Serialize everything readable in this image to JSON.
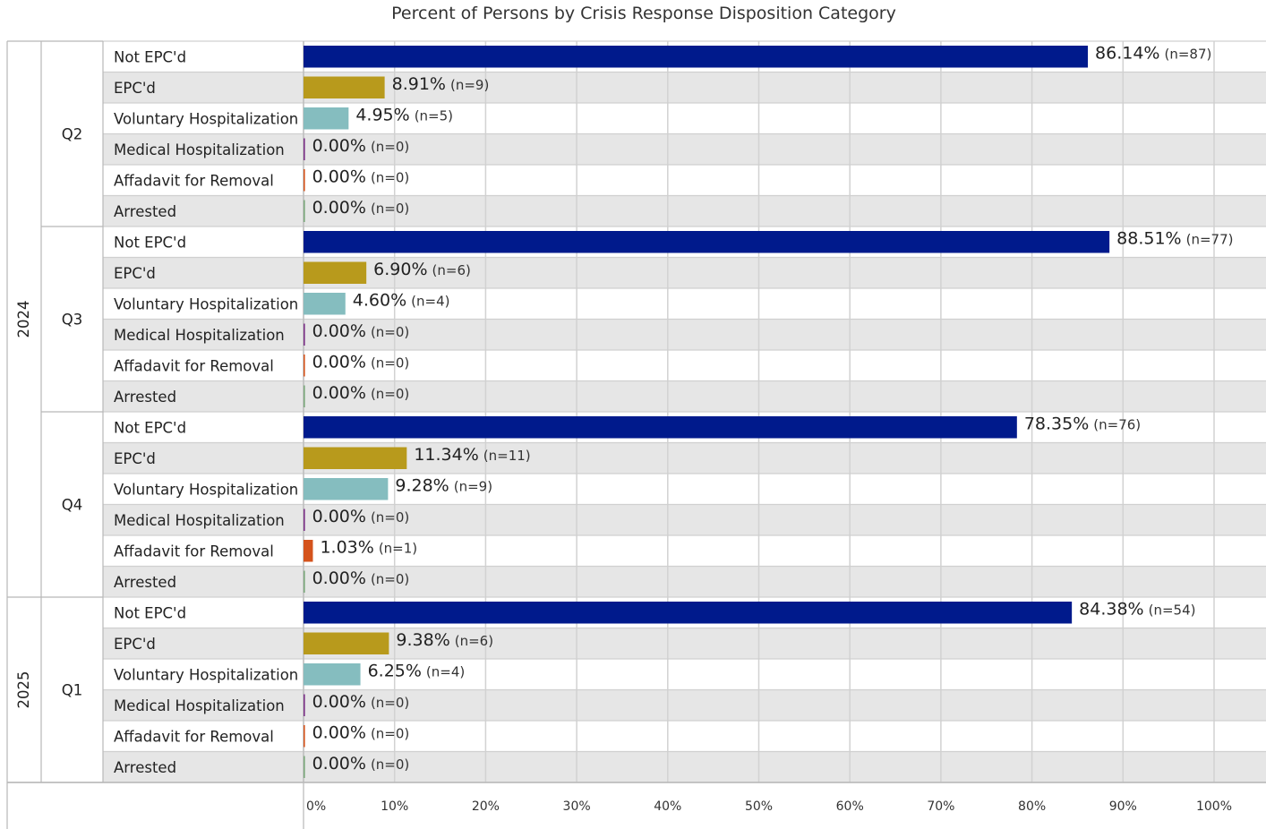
{
  "chart_data": {
    "type": "bar",
    "orientation": "horizontal",
    "title": "Percent of Persons by Crisis Response Disposition Category",
    "xlabel": "",
    "ylabel": "",
    "xlim": [
      0,
      100
    ],
    "grid": true,
    "legend": "none",
    "x_ticks": [
      "0%",
      "10%",
      "20%",
      "30%",
      "40%",
      "50%",
      "60%",
      "70%",
      "80%",
      "90%",
      "100%"
    ],
    "categories": [
      "Not EPC'd",
      "EPC'd",
      "Voluntary Hospitalization",
      "Medical Hospitalization",
      "Affadavit for Removal",
      "Arrested"
    ],
    "colors": [
      "#001a8c",
      "#b89a1c",
      "#85bdbf",
      "#7a2f86",
      "#d4531c",
      "#7aa77a"
    ],
    "years": [
      {
        "year": "2024",
        "quarters": [
          {
            "quarter": "Q2",
            "values": [
              86.14,
              8.91,
              4.95,
              0.0,
              0.0,
              0.0
            ],
            "value_labels": [
              "86.14%",
              "8.91%",
              "4.95%",
              "0.00%",
              "0.00%",
              "0.00%"
            ],
            "counts": [
              "(n=87)",
              "(n=9)",
              "(n=5)",
              "(n=0)",
              "(n=0)",
              "(n=0)"
            ]
          },
          {
            "quarter": "Q3",
            "values": [
              88.51,
              6.9,
              4.6,
              0.0,
              0.0,
              0.0
            ],
            "value_labels": [
              "88.51%",
              "6.90%",
              "4.60%",
              "0.00%",
              "0.00%",
              "0.00%"
            ],
            "counts": [
              "(n=77)",
              "(n=6)",
              "(n=4)",
              "(n=0)",
              "(n=0)",
              "(n=0)"
            ]
          },
          {
            "quarter": "Q4",
            "values": [
              78.35,
              11.34,
              9.28,
              0.0,
              1.03,
              0.0
            ],
            "value_labels": [
              "78.35%",
              "11.34%",
              "9.28%",
              "0.00%",
              "1.03%",
              "0.00%"
            ],
            "counts": [
              "(n=76)",
              "(n=11)",
              "(n=9)",
              "(n=0)",
              "(n=1)",
              "(n=0)"
            ]
          }
        ]
      },
      {
        "year": "2025",
        "quarters": [
          {
            "quarter": "Q1",
            "values": [
              84.38,
              9.38,
              6.25,
              0.0,
              0.0,
              0.0
            ],
            "value_labels": [
              "84.38%",
              "9.38%",
              "6.25%",
              "0.00%",
              "0.00%",
              "0.00%"
            ],
            "counts": [
              "(n=54)",
              "(n=6)",
              "(n=4)",
              "(n=0)",
              "(n=0)",
              "(n=0)"
            ]
          }
        ]
      }
    ]
  }
}
